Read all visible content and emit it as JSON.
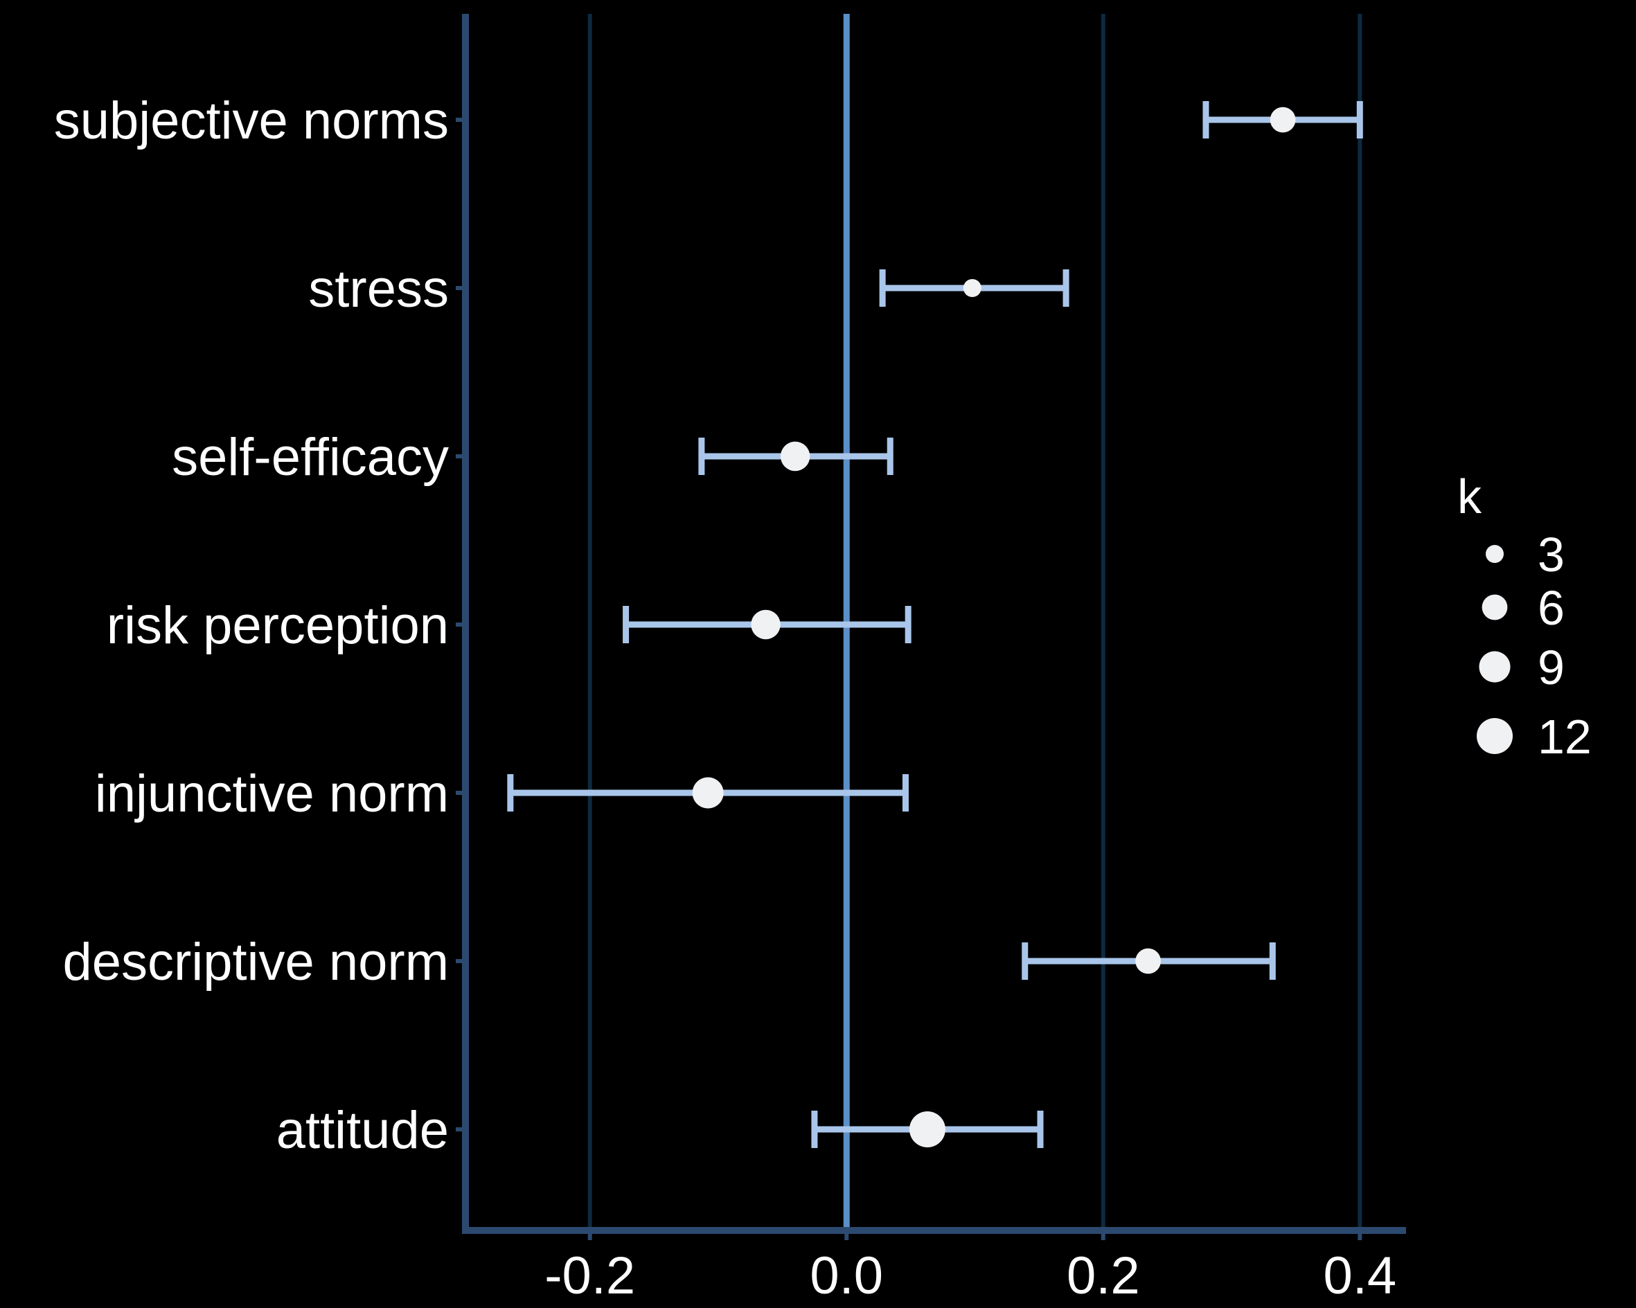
{
  "chart_data": {
    "type": "forest",
    "categories": [
      "subjective norms",
      "stress",
      "self-efficacy",
      "risk perception",
      "injunctive norm",
      "descriptive norm",
      "attitude"
    ],
    "series": [
      {
        "points": [
          {
            "category": "subjective norms",
            "estimate": 0.34,
            "ci_low": 0.28,
            "ci_high": 0.4,
            "k": 6
          },
          {
            "category": "stress",
            "estimate": 0.098,
            "ci_low": 0.028,
            "ci_high": 0.171,
            "k": 3
          },
          {
            "category": "self-efficacy",
            "estimate": -0.04,
            "ci_low": -0.113,
            "ci_high": 0.034,
            "k": 8
          },
          {
            "category": "risk perception",
            "estimate": -0.063,
            "ci_low": -0.172,
            "ci_high": 0.048,
            "k": 8
          },
          {
            "category": "injunctive norm",
            "estimate": -0.108,
            "ci_low": -0.262,
            "ci_high": 0.046,
            "k": 9
          },
          {
            "category": "descriptive norm",
            "estimate": 0.235,
            "ci_low": 0.139,
            "ci_high": 0.332,
            "k": 6
          },
          {
            "category": "attitude",
            "estimate": 0.063,
            "ci_low": -0.025,
            "ci_high": 0.151,
            "k": 12
          }
        ]
      }
    ],
    "xticks": [
      -0.2,
      0.0,
      0.2,
      0.4
    ],
    "xtick_labels": [
      "-0.2",
      "0.0",
      "0.2",
      "0.4"
    ],
    "xlim": [
      -0.297,
      0.436
    ],
    "reference_line": 0,
    "grid": true,
    "legend": {
      "title": "k",
      "position": "right",
      "entries": [
        {
          "label": "3",
          "k": 3
        },
        {
          "label": "6",
          "k": 6
        },
        {
          "label": "9",
          "k": 9
        },
        {
          "label": "12",
          "k": 12
        }
      ]
    },
    "colors": {
      "background": "#000000",
      "axis": "#2c4a70",
      "grid": "#0d2a40",
      "reference": "#5b8fc7",
      "errorbar": "#a9c6ea",
      "point": "#f0f1f3",
      "text": "#ffffff"
    }
  }
}
